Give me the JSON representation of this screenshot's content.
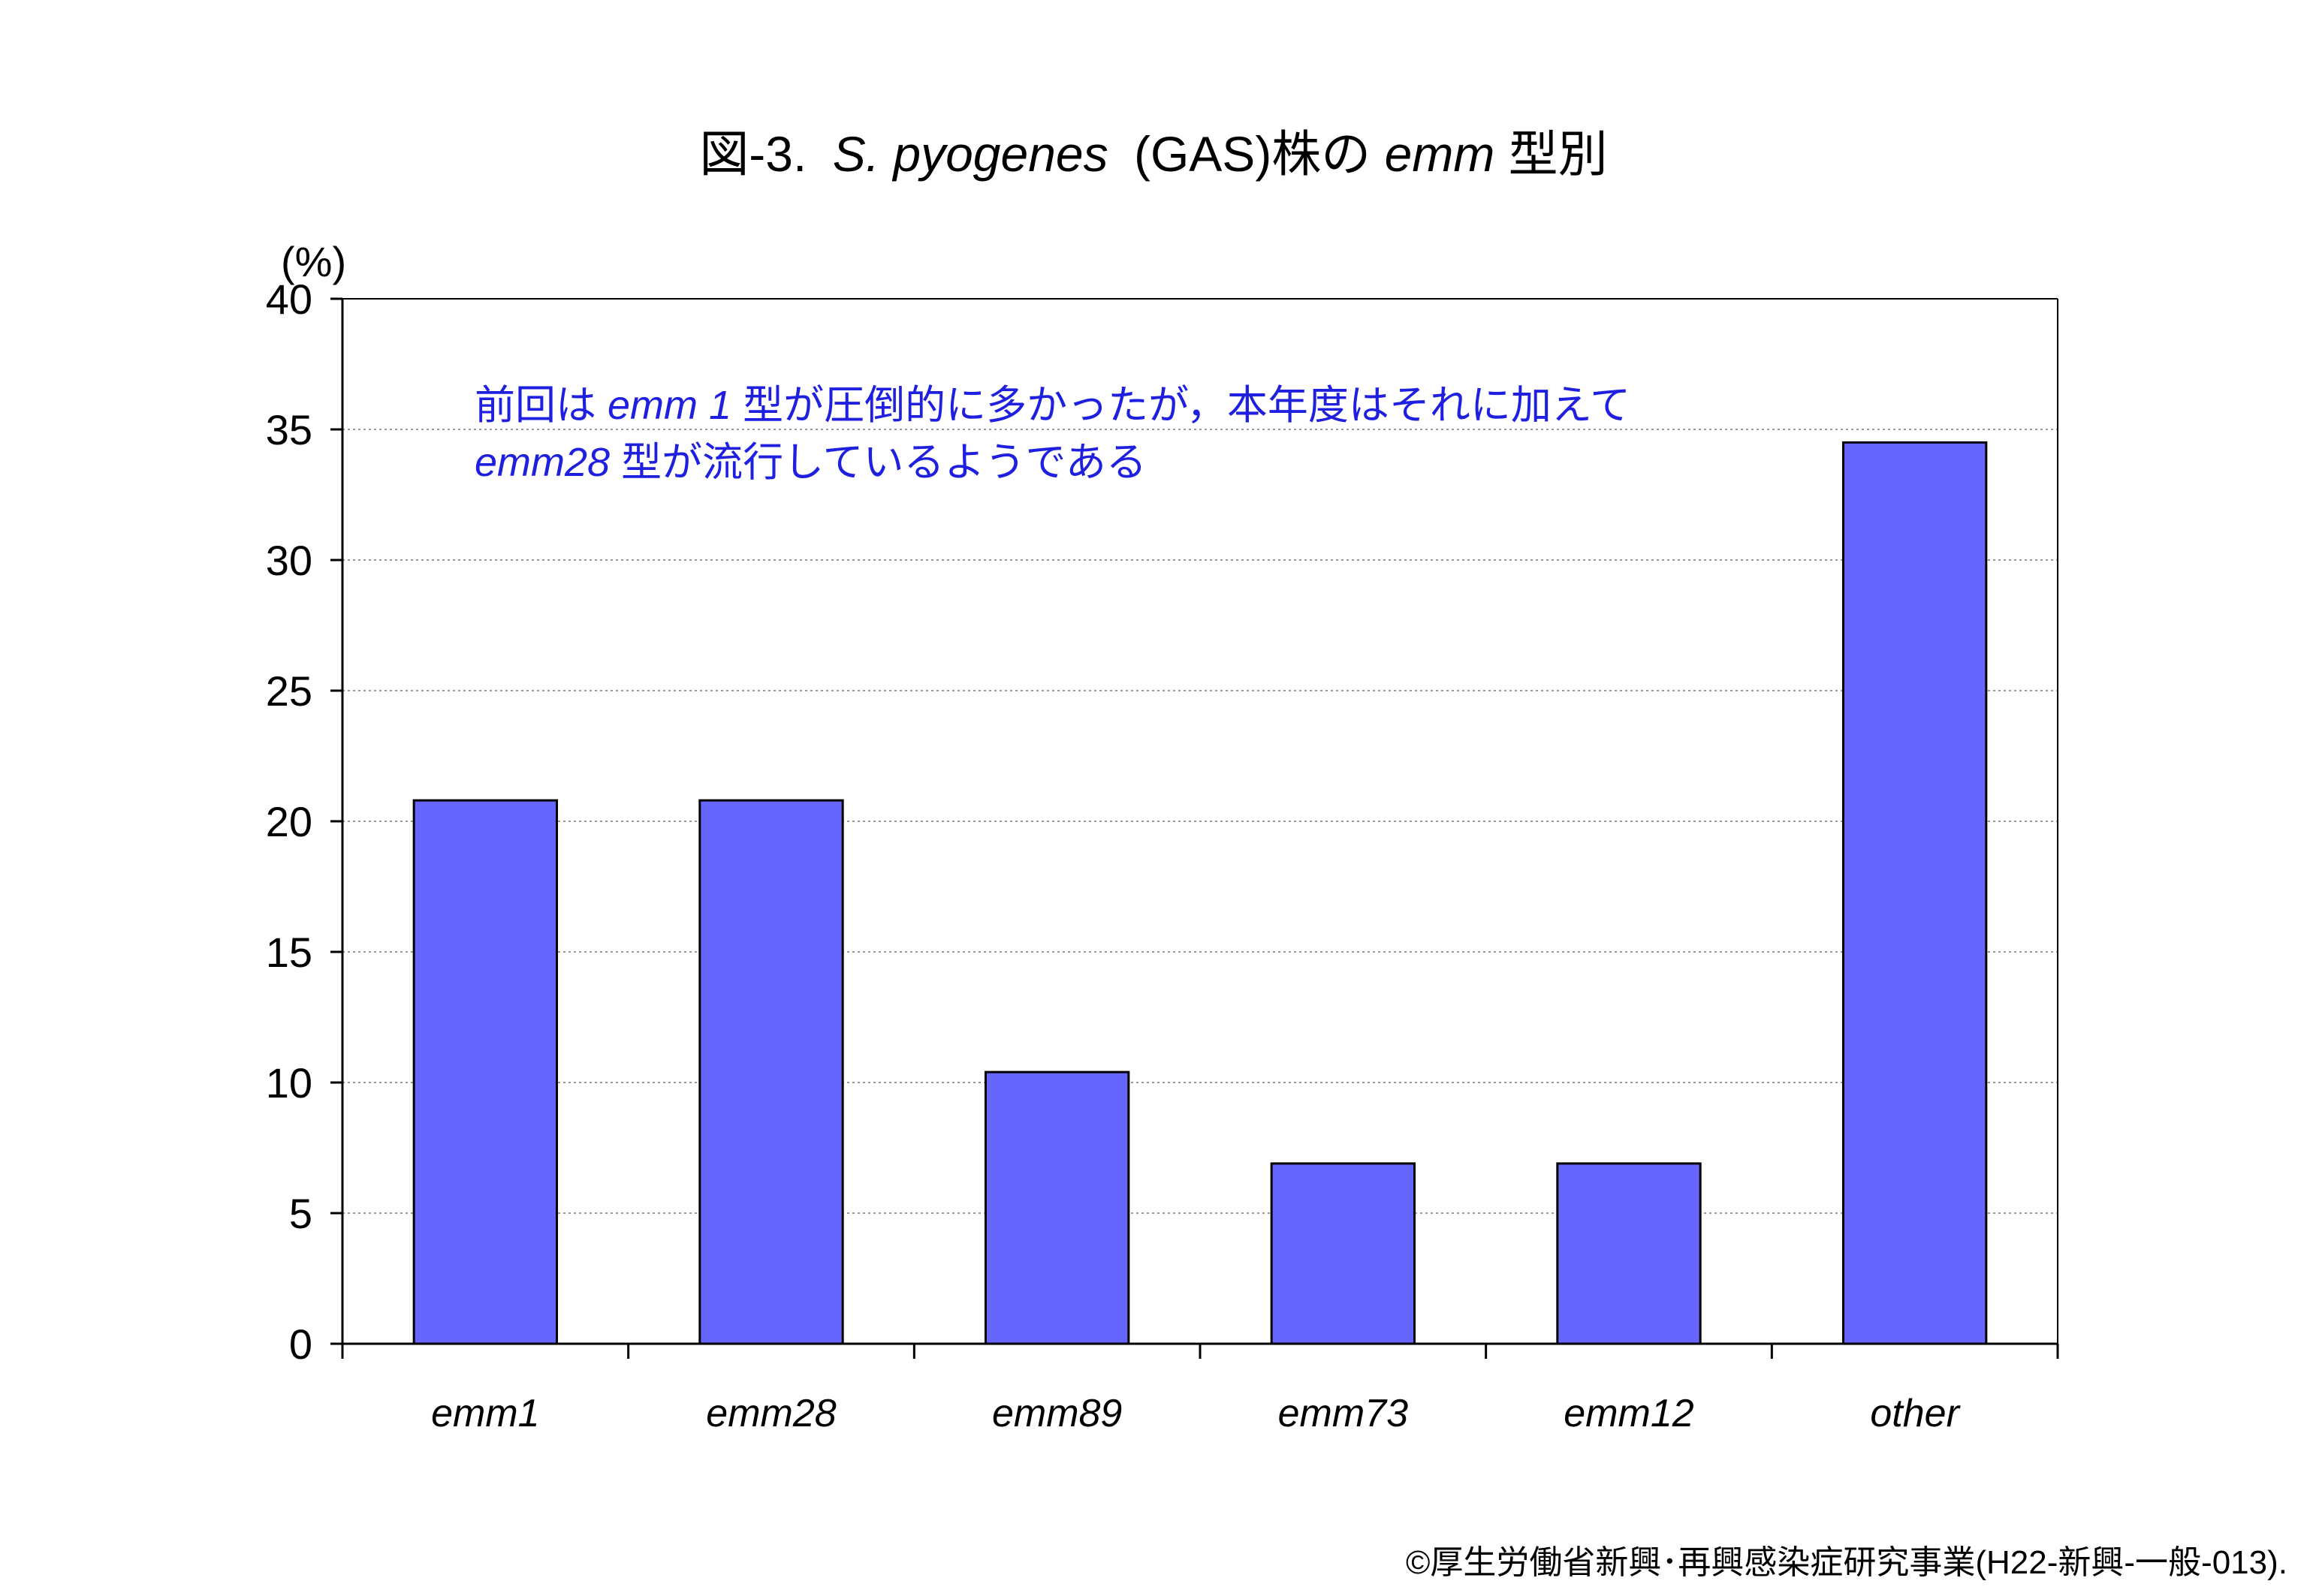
{
  "title": {
    "prefix": "図-3.",
    "species": "S. pyogenes",
    "middle": "(GAS)株の",
    "gene": "emm",
    "suffix": "型別"
  },
  "annotation": {
    "line1_a": "前回は",
    "line1_b": "emm 1",
    "line1_c": "型が圧倒的に多かったが，本年度はそれに加えて",
    "line2_a": "emm28",
    "line2_b": "型が流行しているようである"
  },
  "copyright": "©厚生労働省新興･再興感染症研究事業(H22-新興-一般-013).",
  "colors": {
    "bar": "#6666ff",
    "annotation": "#1f1fe0"
  },
  "chart_data": {
    "type": "bar",
    "title": "図-3. S. pyogenes (GAS)株のemm型別",
    "ylabel": "(%)",
    "xlabel": "",
    "categories": [
      "emm1",
      "emm28",
      "emm89",
      "emm73",
      "emm12",
      "other"
    ],
    "values": [
      20.8,
      20.8,
      10.4,
      6.9,
      6.9,
      34.5
    ],
    "ylim": [
      0,
      40
    ],
    "yticks": [
      "0",
      "5",
      "10",
      "15",
      "20",
      "25",
      "30",
      "35",
      "40"
    ],
    "grid": true,
    "legend": "none"
  }
}
